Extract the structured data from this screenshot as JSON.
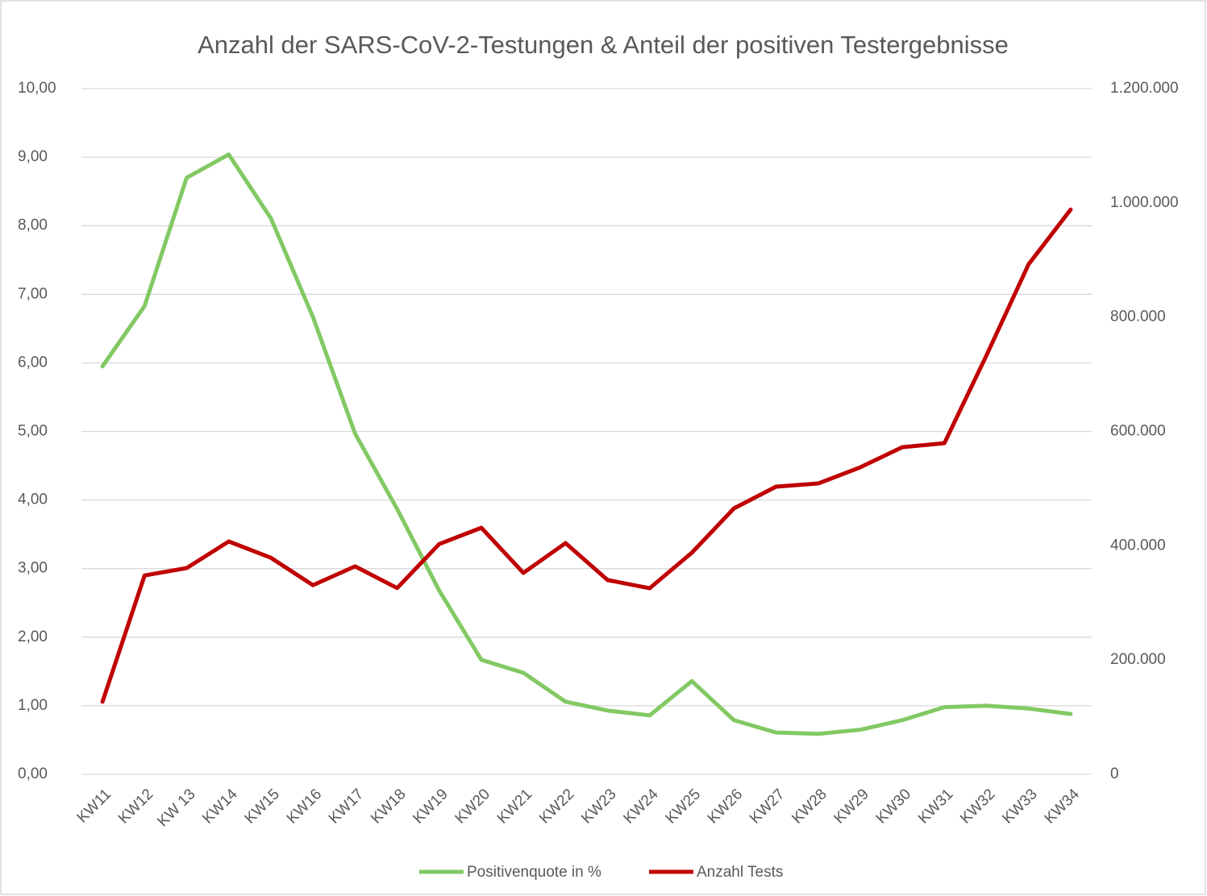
{
  "chart_data": {
    "type": "line",
    "title": "Anzahl der SARS-CoV-2-Testungen & Anteil der positiven Testergebnisse",
    "categories": [
      "KW11",
      "KW12",
      "KW 13",
      "KW14",
      "KW15",
      "KW16",
      "KW17",
      "KW18",
      "KW19",
      "KW20",
      "KW21",
      "KW22",
      "KW23",
      "KW24",
      "KW25",
      "KW26",
      "KW27",
      "KW28",
      "KW29",
      "KW30",
      "KW31",
      "KW32",
      "KW33",
      "KW34"
    ],
    "series": [
      {
        "name": "Positivenquote in %",
        "color": "#82c963",
        "values": [
          5.95,
          6.83,
          8.7,
          9.04,
          8.11,
          6.67,
          4.97,
          3.87,
          2.68,
          1.67,
          1.48,
          1.06,
          0.93,
          0.86,
          1.36,
          0.79,
          0.61,
          0.59,
          0.65,
          0.79,
          0.98,
          1.0,
          0.96,
          0.88
        ]
      },
      {
        "name": "Anzahl Tests",
        "color": "#c00000",
        "axis": "y2",
        "values": [
          127000,
          348000,
          361000,
          407500,
          379000,
          331000,
          364000,
          326000,
          403000,
          431500,
          352500,
          404700,
          340000,
          325700,
          387800,
          465300,
          503400,
          509000,
          537200,
          572500,
          579500,
          733200,
          892500,
          988400
        ]
      }
    ],
    "ylim": [
      0,
      10
    ],
    "yticks": [
      {
        "value": 0,
        "label": "0,00"
      },
      {
        "value": 1,
        "label": "1,00"
      },
      {
        "value": 2,
        "label": "2,00"
      },
      {
        "value": 3,
        "label": "3,00"
      },
      {
        "value": 4,
        "label": "4,00"
      },
      {
        "value": 5,
        "label": "5,00"
      },
      {
        "value": 6,
        "label": "6,00"
      },
      {
        "value": 7,
        "label": "7,00"
      },
      {
        "value": 8,
        "label": "8,00"
      },
      {
        "value": 9,
        "label": "9,00"
      },
      {
        "value": 10,
        "label": "10,00"
      }
    ],
    "y2lim": [
      0,
      1200000
    ],
    "y2ticks": [
      0,
      {
        "value": 200000,
        "label": "200.000"
      },
      {
        "value": 400000,
        "label": "400.000"
      },
      {
        "value": 600000,
        "label": "600.000"
      },
      {
        "value": 800000,
        "label": "800.000"
      },
      {
        "value": 1000000,
        "label": "1.000.000"
      },
      {
        "value": 1200000,
        "label": "1.200.000"
      }
    ],
    "grid": true,
    "legend": "bottom"
  }
}
